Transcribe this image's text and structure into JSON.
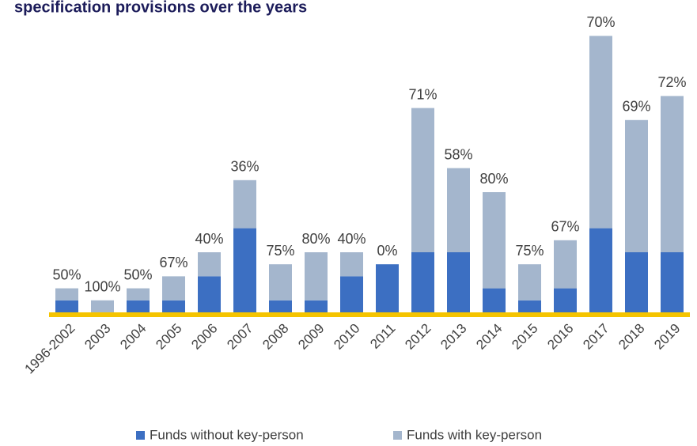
{
  "chart_data": {
    "type": "bar",
    "stacked": true,
    "title": "specification provisions over the years",
    "categories": [
      "1996-2002",
      "2003",
      "2004",
      "2005",
      "2006",
      "2007",
      "2008",
      "2009",
      "2010",
      "2011",
      "2012",
      "2013",
      "2014",
      "2015",
      "2016",
      "2017",
      "2018",
      "2019"
    ],
    "series": [
      {
        "name": "Funds without key-person",
        "color": "#3c6fc2",
        "values": [
          1,
          0,
          1,
          1,
          3,
          7,
          1,
          1,
          3,
          4,
          5,
          5,
          2,
          1,
          2,
          7,
          5,
          5
        ]
      },
      {
        "name": "Funds with key-person",
        "color": "#a4b6cd",
        "values": [
          1,
          1,
          1,
          2,
          2,
          4,
          3,
          4,
          2,
          0,
          12,
          7,
          8,
          3,
          4,
          16,
          11,
          13
        ]
      }
    ],
    "annotations": [
      "50%",
      "100%",
      "50%",
      "67%",
      "40%",
      "36%",
      "75%",
      "80%",
      "40%",
      "0%",
      "71%",
      "58%",
      "80%",
      "75%",
      "67%",
      "70%",
      "69%",
      "72%"
    ],
    "baseline_color": "#f5c400"
  }
}
